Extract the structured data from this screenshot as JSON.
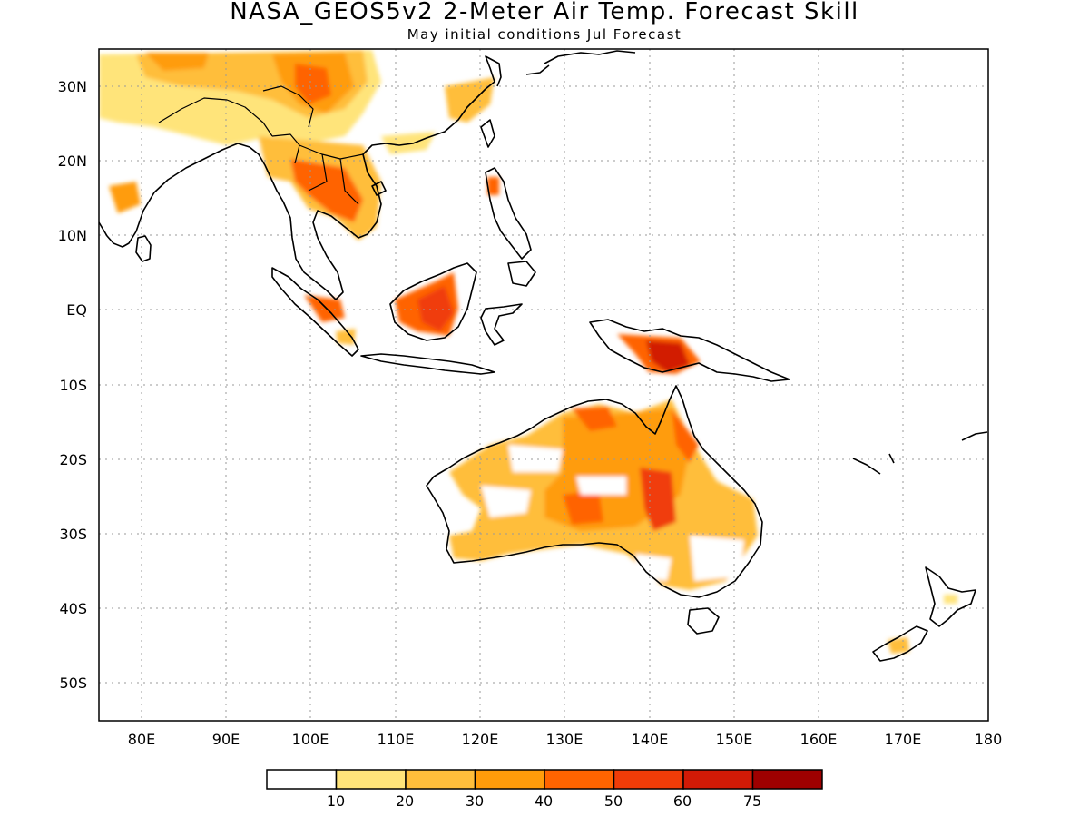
{
  "title": "NASA_GEOS5v2 2-Meter Air Temp. Forecast Skill",
  "subtitle": "May initial conditions  Jul Forecast",
  "lat_labels": [
    "30N",
    "20N",
    "10N",
    "EQ",
    "10S",
    "20S",
    "30S",
    "40S",
    "50S"
  ],
  "lon_labels": [
    "80E",
    "90E",
    "100E",
    "110E",
    "120E",
    "130E",
    "140E",
    "150E",
    "160E",
    "170E",
    "180"
  ],
  "colorbar": {
    "levels": [
      "10",
      "20",
      "30",
      "40",
      "50",
      "60",
      "75"
    ],
    "colors": [
      "#ffffff",
      "#ffe47a",
      "#ffbe3b",
      "#ff9c0a",
      "#ff6400",
      "#f03c08",
      "#d21a06",
      "#9e0000"
    ]
  },
  "map_extent": {
    "lon": [
      75,
      180
    ],
    "lat": [
      -55,
      35
    ]
  }
}
